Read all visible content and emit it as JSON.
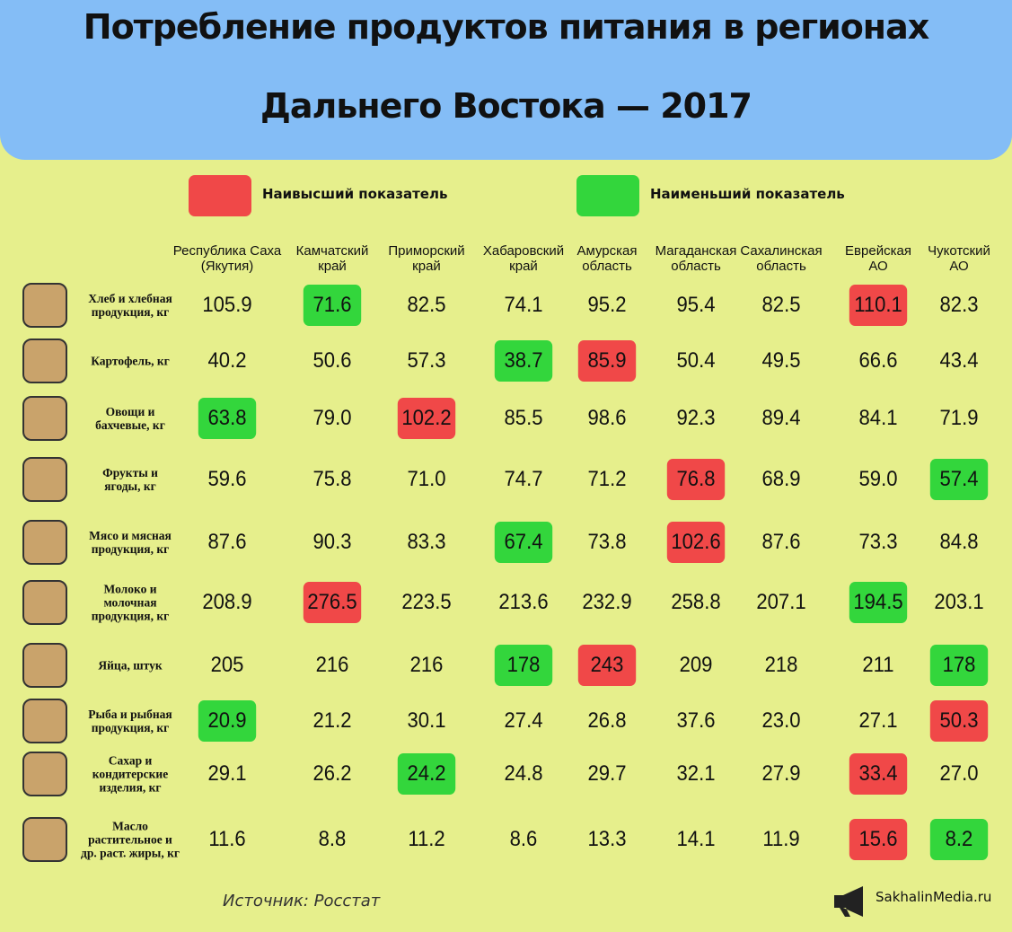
{
  "header": {
    "title": [
      "Потребление продуктов питания в регионах",
      "Дальнего Востока — 2017"
    ]
  },
  "legend": [
    {
      "label": "Наивысший показатель",
      "color": "#f04848"
    },
    {
      "label": "Наименьший показатель",
      "color": "#33d63c"
    }
  ],
  "table": {
    "columns": [
      [
        "Республика Саха",
        "(Якутия)"
      ],
      [
        "Камчатский",
        "край"
      ],
      [
        "Приморский",
        "край"
      ],
      [
        "Хабаровский",
        "край"
      ],
      [
        "Амурская",
        "область"
      ],
      [
        "Магаданская",
        "область"
      ],
      [
        "Сахалинская",
        "область"
      ],
      [
        "Еврейская",
        "АО"
      ],
      [
        "Чукотский",
        "АО"
      ]
    ],
    "rows": [
      {
        "label": [
          "Хлеб и хлебная",
          "продукция, кг"
        ],
        "values": [
          "105.9",
          "71.6",
          "82.5",
          "74.1",
          "95.2",
          "95.4",
          "82.5",
          "110.1",
          "82.3"
        ]
      },
      {
        "label": [
          "Картофель, кг"
        ],
        "values": [
          "40.2",
          "50.6",
          "57.3",
          "38.7",
          "85.9",
          "50.4",
          "49.5",
          "66.6",
          "43.4"
        ]
      },
      {
        "label": [
          "Овощи и",
          "бахчевые, кг"
        ],
        "values": [
          "63.8",
          "79.0",
          "102.2",
          "85.5",
          "98.6",
          "92.3",
          "89.4",
          "84.1",
          "71.9"
        ]
      },
      {
        "label": [
          "Фрукты и",
          "ягоды, кг"
        ],
        "values": [
          "59.6",
          "75.8",
          "71.0",
          "74.7",
          "71.2",
          "76.8",
          "68.9",
          "59.0",
          "57.4"
        ]
      },
      {
        "label": [
          "Мясо и мясная",
          "продукция, кг"
        ],
        "values": [
          "87.6",
          "90.3",
          "83.3",
          "67.4",
          "73.8",
          "102.6",
          "87.6",
          "73.3",
          "84.8"
        ]
      },
      {
        "label": [
          "Молоко и",
          "молочная",
          "продукция, кг"
        ],
        "values": [
          "208.9",
          "276.5",
          "223.5",
          "213.6",
          "232.9",
          "258.8",
          "207.1",
          "194.5",
          "203.1"
        ]
      },
      {
        "label": [
          "Яйца, штук"
        ],
        "values": [
          "205",
          "216",
          "216",
          "178",
          "243",
          "209",
          "218",
          "211",
          "178"
        ]
      },
      {
        "label": [
          "Рыба и рыбная",
          "продукция, кг"
        ],
        "values": [
          "20.9",
          "21.2",
          "30.1",
          "27.4",
          "26.8",
          "37.6",
          "23.0",
          "27.1",
          "50.3"
        ]
      },
      {
        "label": [
          "Сахар и",
          "кондитерские",
          "изделия, кг"
        ],
        "values": [
          "29.1",
          "26.2",
          "24.2",
          "24.8",
          "29.7",
          "32.1",
          "27.9",
          "33.4",
          "27.0"
        ]
      },
      {
        "label": [
          "Масло",
          "растительное и",
          "др. раст. жиры, кг"
        ],
        "values": [
          "11.6",
          "8.8",
          "11.2",
          "8.6",
          "13.3",
          "14.1",
          "11.9",
          "15.6",
          "8.2"
        ]
      }
    ]
  },
  "footer": {
    "source": "Источник: Росстат",
    "site": "SakhalinMedia.ru"
  }
}
